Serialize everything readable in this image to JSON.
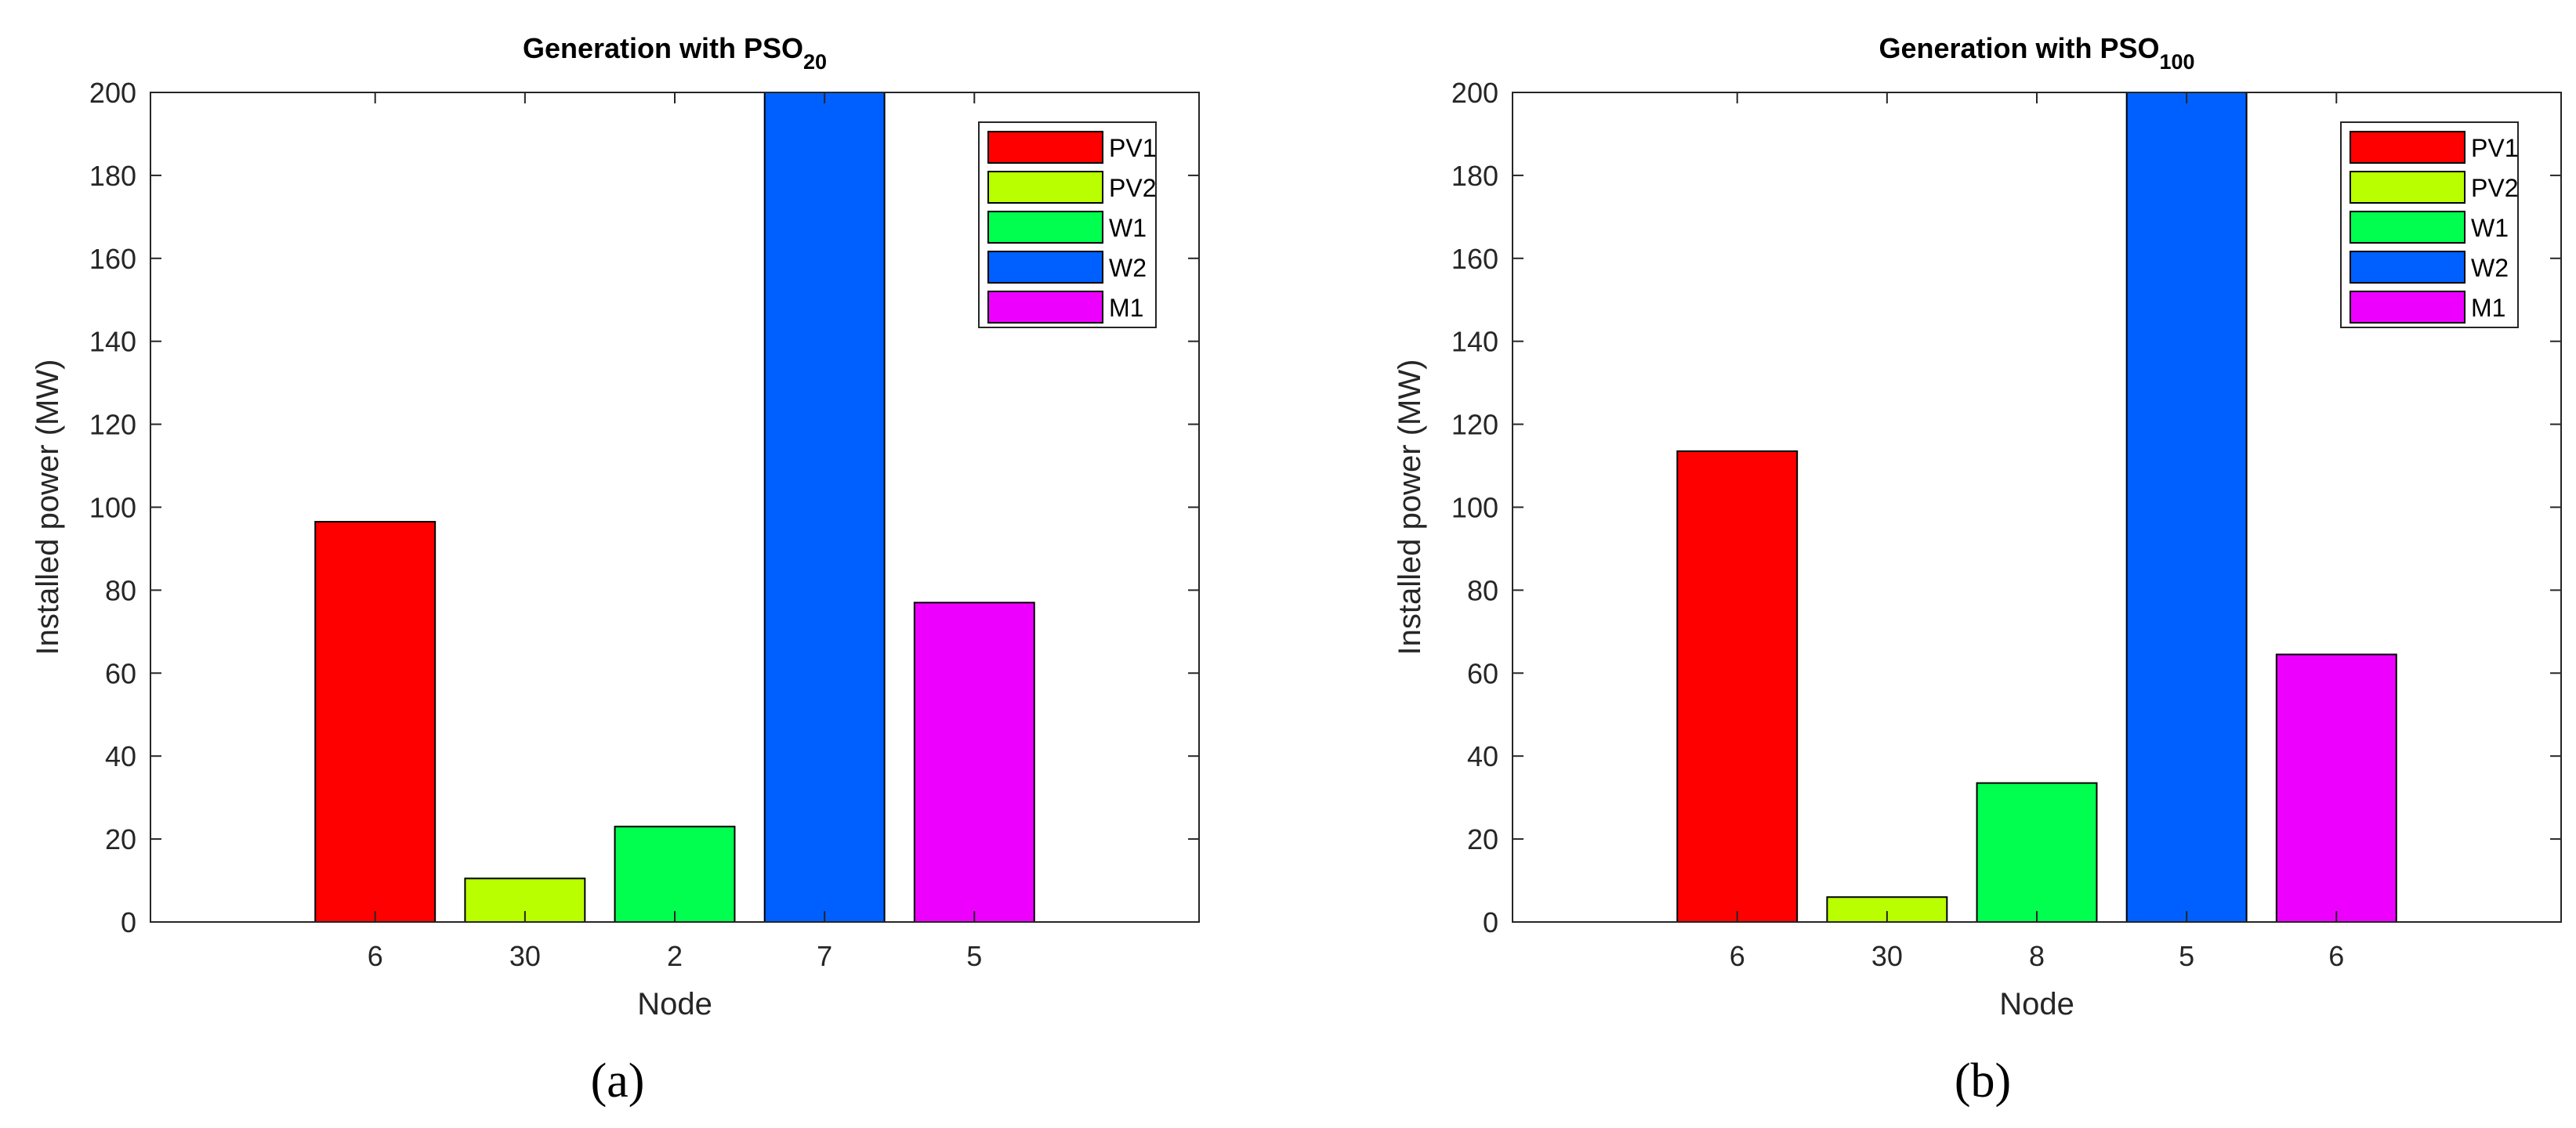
{
  "chart_data": [
    {
      "type": "bar",
      "panel_label": "(a)",
      "title": "Generation with PSO",
      "title_subscript": "20",
      "xlabel": "Node",
      "ylabel": "Installed power (MW)",
      "ylim": [
        0,
        200
      ],
      "yticks": [
        "0",
        "20",
        "40",
        "60",
        "80",
        "100",
        "120",
        "140",
        "160",
        "180",
        "200"
      ],
      "categories": [
        "6",
        "30",
        "2",
        "7",
        "5"
      ],
      "values": [
        96.5,
        10.5,
        23,
        200,
        77
      ],
      "legend": [
        "PV1",
        "PV2",
        "W1",
        "W2",
        "M1"
      ],
      "legend_position": "top-right"
    },
    {
      "type": "bar",
      "panel_label": "(b)",
      "title": "Generation with PSO",
      "title_subscript": "100",
      "xlabel": "Node",
      "ylabel": "Installed power (MW)",
      "ylim": [
        0,
        200
      ],
      "yticks": [
        "0",
        "20",
        "40",
        "60",
        "80",
        "100",
        "120",
        "140",
        "160",
        "180",
        "200"
      ],
      "categories": [
        "6",
        "30",
        "8",
        "5",
        "6"
      ],
      "values": [
        113.5,
        6,
        33.5,
        200,
        64.5
      ],
      "legend": [
        "PV1",
        "PV2",
        "W1",
        "W2",
        "M1"
      ],
      "legend_position": "top-right"
    }
  ],
  "colors": [
    "#ff0000",
    "#b9ff00",
    "#00ff4f",
    "#0060ff",
    "#ee00ff"
  ]
}
